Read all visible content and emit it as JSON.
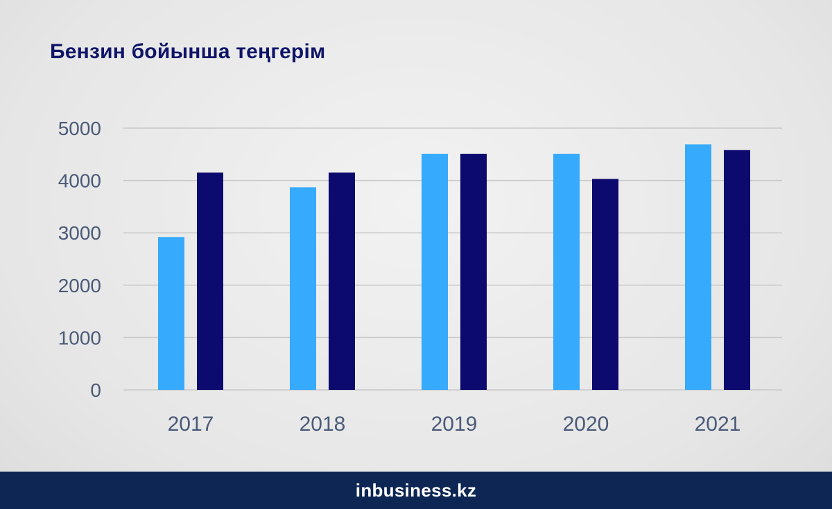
{
  "header": {
    "title": "Бензин бойынша теңгерім"
  },
  "footer": {
    "logo_text": "inbusiness.kz"
  },
  "chart_data": {
    "type": "bar",
    "title": "Бензин бойынша теңгерім",
    "categories": [
      "2017",
      "2018",
      "2019",
      "2020",
      "2021"
    ],
    "series": [
      {
        "color": "#36aafc",
        "values": [
          2920,
          3870,
          4510,
          4510,
          4690
        ]
      },
      {
        "color": "#0c0a6e",
        "values": [
          4150,
          4150,
          4510,
          4030,
          4580
        ]
      }
    ],
    "yticks": [
      "0",
      "1000",
      "2000",
      "3000",
      "4000",
      "5000"
    ],
    "ylim": [
      0,
      5000
    ],
    "grid": true,
    "xlabel": "",
    "ylabel": ""
  }
}
